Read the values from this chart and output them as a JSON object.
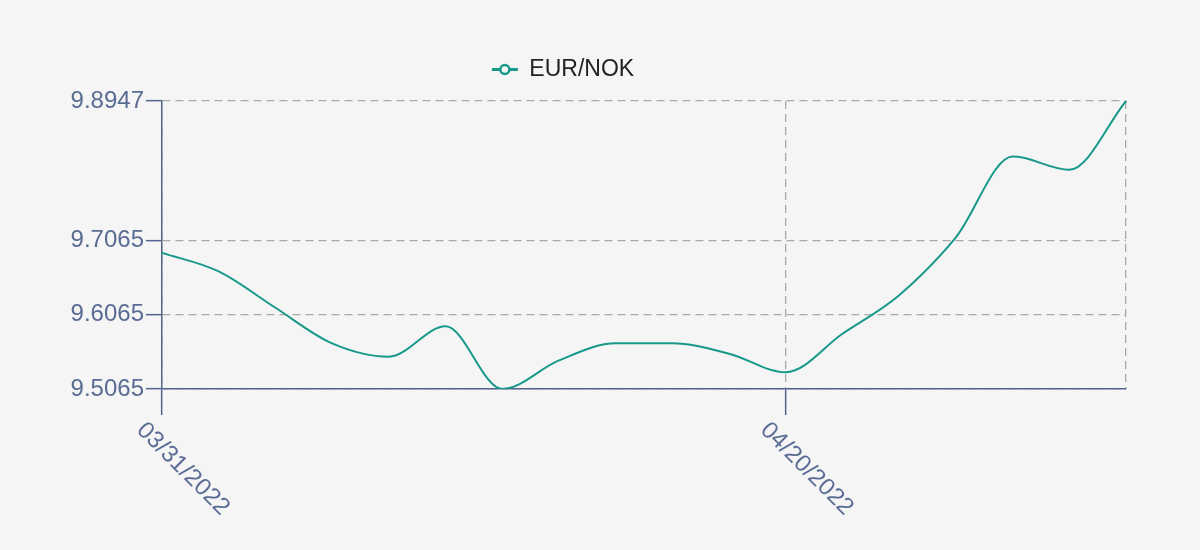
{
  "chart_data": {
    "type": "line",
    "categories": [
      "03/31/2022",
      null,
      null,
      null,
      null,
      null,
      null,
      null,
      null,
      null,
      null,
      "04/20/2022",
      null,
      null,
      null,
      null,
      null,
      null
    ],
    "series": [
      {
        "name": "EUR/NOK",
        "color": "#17998a",
        "values": [
          9.69,
          9.665,
          9.616,
          9.568,
          9.55,
          9.591,
          9.5065,
          9.545,
          9.568,
          9.568,
          9.554,
          9.529,
          9.581,
          9.633,
          9.711,
          9.82,
          9.802,
          9.8947
        ]
      }
    ],
    "ylim": [
      9.5065,
      9.8947
    ],
    "yticks": [
      9.5065,
      9.6065,
      9.7065,
      9.8947
    ],
    "grid": true,
    "legend": "top"
  }
}
